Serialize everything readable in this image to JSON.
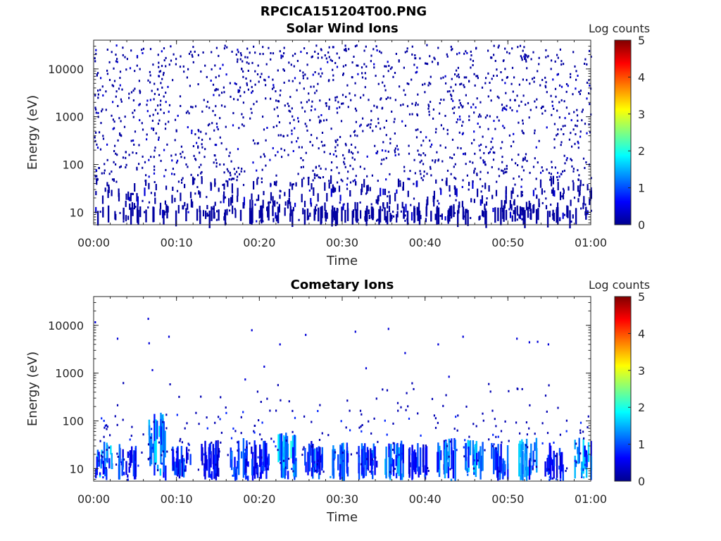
{
  "figure": {
    "title": "RPCICA151204T00.PNG"
  },
  "colors": {
    "colormap": [
      "#00008f",
      "#0000ff",
      "#0080ff",
      "#00ffff",
      "#80ff80",
      "#ffff00",
      "#ff8000",
      "#ff0000",
      "#800000"
    ],
    "axis": "#262626"
  },
  "chart_data": [
    {
      "type": "heatmap",
      "title": "Solar Wind Ions",
      "xlabel": "Time",
      "ylabel": "Energy (eV)",
      "x_ticks": [
        "00:00",
        "00:10",
        "00:20",
        "00:30",
        "00:40",
        "00:50",
        "01:00"
      ],
      "x_range_minutes": [
        0,
        60
      ],
      "y_scale": "log",
      "y_ticks": [
        "10",
        "100",
        "1000",
        "10000"
      ],
      "y_range_eV": [
        5.5,
        40000
      ],
      "colorbar": {
        "label": "Log counts",
        "range": [
          0,
          5
        ],
        "ticks": [
          "0",
          "1",
          "2",
          "3",
          "4",
          "5"
        ]
      },
      "description_of_pattern": "sparse single counts (log ≈ 0–0.3) scattered across all energies from ~6 eV to ~30000 eV for the full hour",
      "count_level_log": [
        0,
        0.3
      ]
    },
    {
      "type": "heatmap",
      "title": "Cometary Ions",
      "xlabel": "Time",
      "ylabel": "Energy (eV)",
      "x_ticks": [
        "00:00",
        "00:10",
        "00:20",
        "00:30",
        "00:40",
        "00:50",
        "01:00"
      ],
      "x_range_minutes": [
        0,
        60
      ],
      "y_scale": "log",
      "y_ticks": [
        "10",
        "100",
        "1000",
        "10000"
      ],
      "y_range_eV": [
        5.5,
        40000
      ],
      "colorbar": {
        "label": "Log counts",
        "range": [
          0,
          5
        ],
        "ticks": [
          "0",
          "1",
          "2",
          "3",
          "4",
          "5"
        ]
      },
      "description_of_pattern": "counts concentrated below ~100 eV in vertical bursts, sparse counts above",
      "bursts": [
        {
          "t_min": 1.2,
          "e_top": 40,
          "peak_log": 1.8
        },
        {
          "t_min": 4.0,
          "e_top": 35,
          "peak_log": 1.2
        },
        {
          "t_min": 7.6,
          "e_top": 150,
          "peak_log": 2.0
        },
        {
          "t_min": 10.5,
          "e_top": 35,
          "peak_log": 1.2
        },
        {
          "t_min": 14.0,
          "e_top": 40,
          "peak_log": 1.0
        },
        {
          "t_min": 17.5,
          "e_top": 45,
          "peak_log": 1.3
        },
        {
          "t_min": 20.0,
          "e_top": 40,
          "peak_log": 1.1
        },
        {
          "t_min": 23.3,
          "e_top": 60,
          "peak_log": 2.0
        },
        {
          "t_min": 26.5,
          "e_top": 40,
          "peak_log": 1.3
        },
        {
          "t_min": 29.5,
          "e_top": 40,
          "peak_log": 1.5
        },
        {
          "t_min": 33.0,
          "e_top": 35,
          "peak_log": 1.2
        },
        {
          "t_min": 36.2,
          "e_top": 40,
          "peak_log": 1.6
        },
        {
          "t_min": 39.0,
          "e_top": 35,
          "peak_log": 1.1
        },
        {
          "t_min": 42.5,
          "e_top": 45,
          "peak_log": 1.6
        },
        {
          "t_min": 45.8,
          "e_top": 40,
          "peak_log": 1.7
        },
        {
          "t_min": 49.0,
          "e_top": 35,
          "peak_log": 1.2
        },
        {
          "t_min": 52.3,
          "e_top": 45,
          "peak_log": 1.7
        },
        {
          "t_min": 55.5,
          "e_top": 35,
          "peak_log": 1.0
        },
        {
          "t_min": 59.0,
          "e_top": 45,
          "peak_log": 1.8
        }
      ],
      "isolated_high_points": [
        {
          "t_min": 0.1,
          "e": 11000
        },
        {
          "t_min": 2.8,
          "e": 5000
        },
        {
          "t_min": 6.5,
          "e": 13000
        },
        {
          "t_min": 6.6,
          "e": 4000
        },
        {
          "t_min": 9.0,
          "e": 5500
        },
        {
          "t_min": 7.0,
          "e": 1100
        },
        {
          "t_min": 19.0,
          "e": 7500
        },
        {
          "t_min": 22.4,
          "e": 3800
        },
        {
          "t_min": 25.5,
          "e": 6000
        },
        {
          "t_min": 31.5,
          "e": 7000
        },
        {
          "t_min": 32.8,
          "e": 1200
        },
        {
          "t_min": 35.5,
          "e": 8000
        },
        {
          "t_min": 37.5,
          "e": 2500
        },
        {
          "t_min": 41.5,
          "e": 3800
        },
        {
          "t_min": 44.5,
          "e": 5500
        },
        {
          "t_min": 51.0,
          "e": 5000
        },
        {
          "t_min": 52.5,
          "e": 4200
        },
        {
          "t_min": 53.5,
          "e": 4300
        },
        {
          "t_min": 54.8,
          "e": 3800
        },
        {
          "t_min": 42.8,
          "e": 800
        },
        {
          "t_min": 18.2,
          "e": 700
        },
        {
          "t_min": 20.5,
          "e": 1300
        }
      ]
    }
  ]
}
